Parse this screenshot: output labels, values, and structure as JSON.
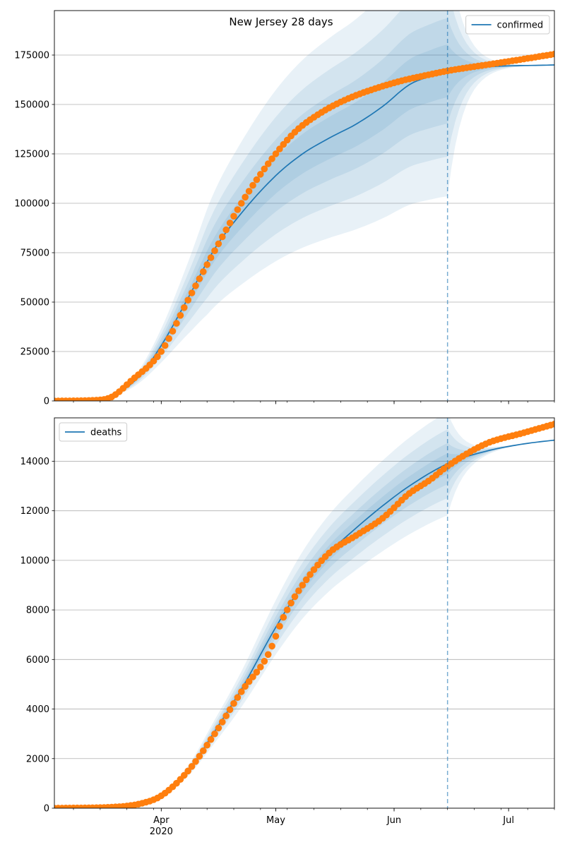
{
  "figure_title": "New Jersey 28 days",
  "x_axis": {
    "month_labels": [
      "Apr",
      "May",
      "Jun",
      "Jul"
    ],
    "month_dates": [
      "2020-04-01",
      "2020-05-01",
      "2020-06-01",
      "2020-07-01"
    ],
    "year_label": "2020",
    "range": [
      "2020-03-04",
      "2020-07-13"
    ]
  },
  "forecast_start": "2020-06-15",
  "colors": {
    "model": "#1f77b4",
    "observed": "#ff7f0e",
    "band": "#1f77b4",
    "grid": "#b0b0b0",
    "forecast_line": "#1f77b4"
  },
  "chart_data": [
    {
      "type": "line",
      "series": [
        {
          "name": "confirmed",
          "kind": "model"
        },
        {
          "kind": "observed"
        }
      ],
      "legend": {
        "label": "confirmed",
        "placement": "top-right"
      },
      "ylim": [
        0,
        197500
      ],
      "yticks": [
        0,
        25000,
        50000,
        75000,
        100000,
        125000,
        150000,
        175000
      ],
      "ytick_labels": [
        "0",
        "25000",
        "50000",
        "75000",
        "100000",
        "125000",
        "150000",
        "175000"
      ],
      "grid": "horizontal",
      "model_knots": [
        [
          "2020-03-04",
          0
        ],
        [
          "2020-03-14",
          500
        ],
        [
          "2020-03-20",
          3500
        ],
        [
          "2020-03-26",
          12000
        ],
        [
          "2020-04-01",
          28000
        ],
        [
          "2020-04-08",
          52000
        ],
        [
          "2020-04-15",
          77000
        ],
        [
          "2020-04-22",
          95000
        ],
        [
          "2020-05-01",
          114000
        ],
        [
          "2020-05-08",
          125000
        ],
        [
          "2020-05-15",
          133000
        ],
        [
          "2020-05-22",
          140000
        ],
        [
          "2020-05-29",
          149000
        ],
        [
          "2020-06-05",
          160000
        ],
        [
          "2020-06-10",
          164000
        ],
        [
          "2020-06-15",
          167000
        ],
        [
          "2020-06-25",
          169000
        ],
        [
          "2020-07-13",
          170000
        ]
      ],
      "band_widths": [
        0.08,
        0.16,
        0.26,
        0.38
      ],
      "observed_knots": [
        [
          "2020-03-04",
          0
        ],
        [
          "2020-03-14",
          300
        ],
        [
          "2020-03-19",
          2000
        ],
        [
          "2020-03-24",
          10000
        ],
        [
          "2020-04-01",
          25000
        ],
        [
          "2020-04-08",
          51000
        ],
        [
          "2020-04-15",
          76000
        ],
        [
          "2020-04-22",
          100000
        ],
        [
          "2020-04-29",
          120000
        ],
        [
          "2020-05-06",
          136000
        ],
        [
          "2020-05-13",
          146000
        ],
        [
          "2020-05-20",
          153000
        ],
        [
          "2020-05-27",
          158000
        ],
        [
          "2020-06-03",
          162000
        ],
        [
          "2020-06-10",
          165000
        ],
        [
          "2020-06-15",
          167000
        ],
        [
          "2020-06-25",
          170000
        ],
        [
          "2020-07-05",
          173000
        ],
        [
          "2020-07-13",
          175500
        ]
      ]
    },
    {
      "type": "line",
      "series": [
        {
          "name": "deaths",
          "kind": "model"
        },
        {
          "kind": "observed"
        }
      ],
      "legend": {
        "label": "deaths",
        "placement": "top-left"
      },
      "ylim": [
        0,
        15750
      ],
      "yticks": [
        0,
        2000,
        4000,
        6000,
        8000,
        10000,
        12000,
        14000
      ],
      "ytick_labels": [
        "0",
        "2000",
        "4000",
        "6000",
        "8000",
        "10000",
        "12000",
        "14000"
      ],
      "grid": "horizontal",
      "model_knots": [
        [
          "2020-03-04",
          0
        ],
        [
          "2020-03-20",
          50
        ],
        [
          "2020-03-27",
          200
        ],
        [
          "2020-04-01",
          500
        ],
        [
          "2020-04-08",
          1500
        ],
        [
          "2020-04-15",
          3100
        ],
        [
          "2020-04-22",
          4800
        ],
        [
          "2020-05-01",
          7300
        ],
        [
          "2020-05-08",
          9000
        ],
        [
          "2020-05-15",
          10300
        ],
        [
          "2020-05-22",
          11300
        ],
        [
          "2020-05-29",
          12200
        ],
        [
          "2020-06-05",
          13000
        ],
        [
          "2020-06-15",
          13900
        ],
        [
          "2020-06-25",
          14400
        ],
        [
          "2020-07-05",
          14700
        ],
        [
          "2020-07-13",
          14850
        ]
      ],
      "band_widths": [
        0.03,
        0.06,
        0.1,
        0.15
      ],
      "observed_knots": [
        [
          "2020-03-04",
          0
        ],
        [
          "2020-03-20",
          50
        ],
        [
          "2020-03-27",
          200
        ],
        [
          "2020-04-01",
          500
        ],
        [
          "2020-04-08",
          1500
        ],
        [
          "2020-04-15",
          3000
        ],
        [
          "2020-04-22",
          4700
        ],
        [
          "2020-04-29",
          6200
        ],
        [
          "2020-05-03",
          7700
        ],
        [
          "2020-05-08",
          9000
        ],
        [
          "2020-05-15",
          10300
        ],
        [
          "2020-05-22",
          11000
        ],
        [
          "2020-05-29",
          11700
        ],
        [
          "2020-06-05",
          12700
        ],
        [
          "2020-06-10",
          13200
        ],
        [
          "2020-06-15",
          13800
        ],
        [
          "2020-06-25",
          14700
        ],
        [
          "2020-07-05",
          15150
        ],
        [
          "2020-07-13",
          15500
        ]
      ]
    }
  ]
}
